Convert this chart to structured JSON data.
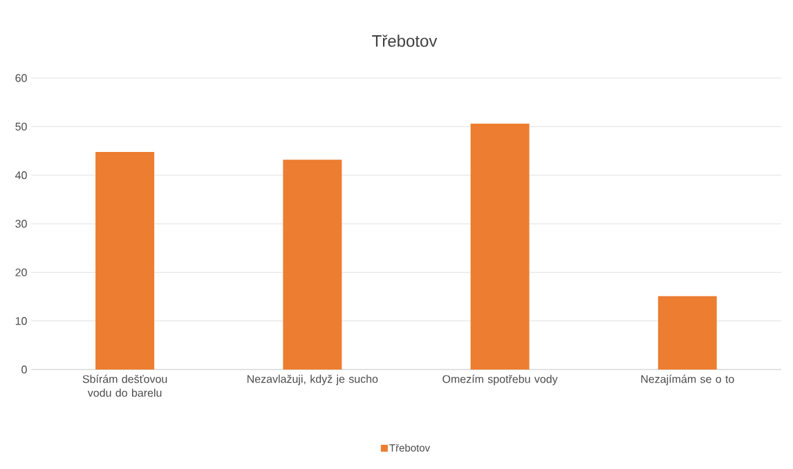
{
  "chart_data": {
    "type": "bar",
    "title": "Třebotov",
    "categories": [
      "Sbírám dešťovou vodu do barelu",
      "Nezavlažuji, když je sucho",
      "Omezím spotřebu vody",
      "Nezajímám se o to"
    ],
    "series": [
      {
        "name": "Třebotov",
        "color": "#ed7d31",
        "values": [
          44.8,
          43.2,
          50.6,
          15.1
        ]
      }
    ],
    "ylim": [
      0,
      60
    ],
    "yticks": [
      0,
      10,
      20,
      30,
      40,
      50,
      60
    ],
    "grid": "y",
    "legend": "bottom"
  }
}
